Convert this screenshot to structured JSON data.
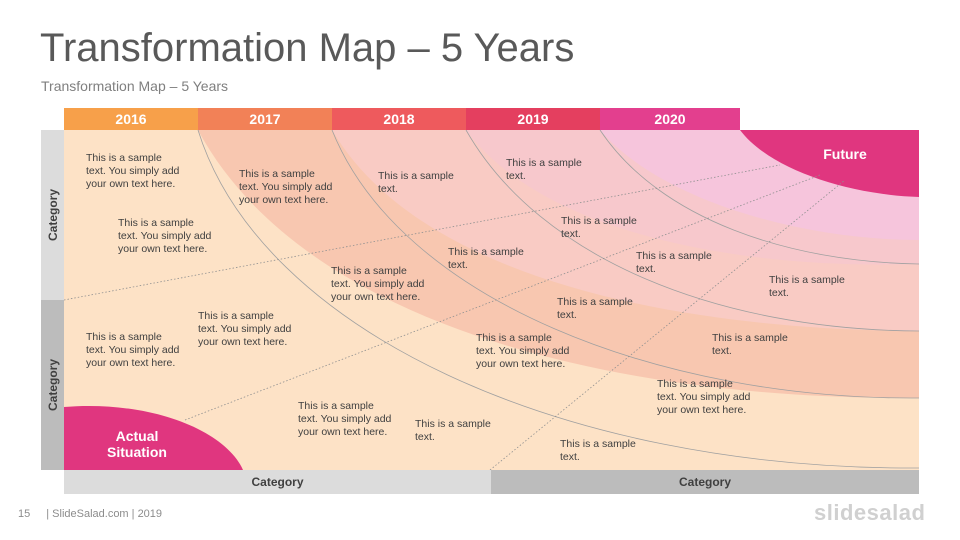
{
  "title": "Transformation Map – 5 Years",
  "subtitle": "Transformation Map – 5 Years",
  "years": [
    {
      "label": "2016",
      "color": "#f7a04a"
    },
    {
      "label": "2017",
      "color": "#f28157"
    },
    {
      "label": "2018",
      "color": "#ee5a5d"
    },
    {
      "label": "2019",
      "color": "#e43f5f"
    },
    {
      "label": "2020",
      "color": "#e33f8e"
    }
  ],
  "zone_colors": [
    "#fde2c6",
    "#f8c7b0",
    "#f9cbc4",
    "#f7c8cc",
    "#f6c5dc"
  ],
  "accent_color": "#e0367f",
  "side_categories": [
    "Category",
    "Category"
  ],
  "bottom_categories": [
    "Category",
    "Category"
  ],
  "future_label": "Future",
  "actual_label": "Actual Situation",
  "texts": {
    "long": "This is a sample text. You simply add your own text here.",
    "short": "This is a sample text."
  },
  "footer": {
    "page": "15",
    "source": "| SlideSalad.com | 2019",
    "brand": "slidesalad"
  }
}
